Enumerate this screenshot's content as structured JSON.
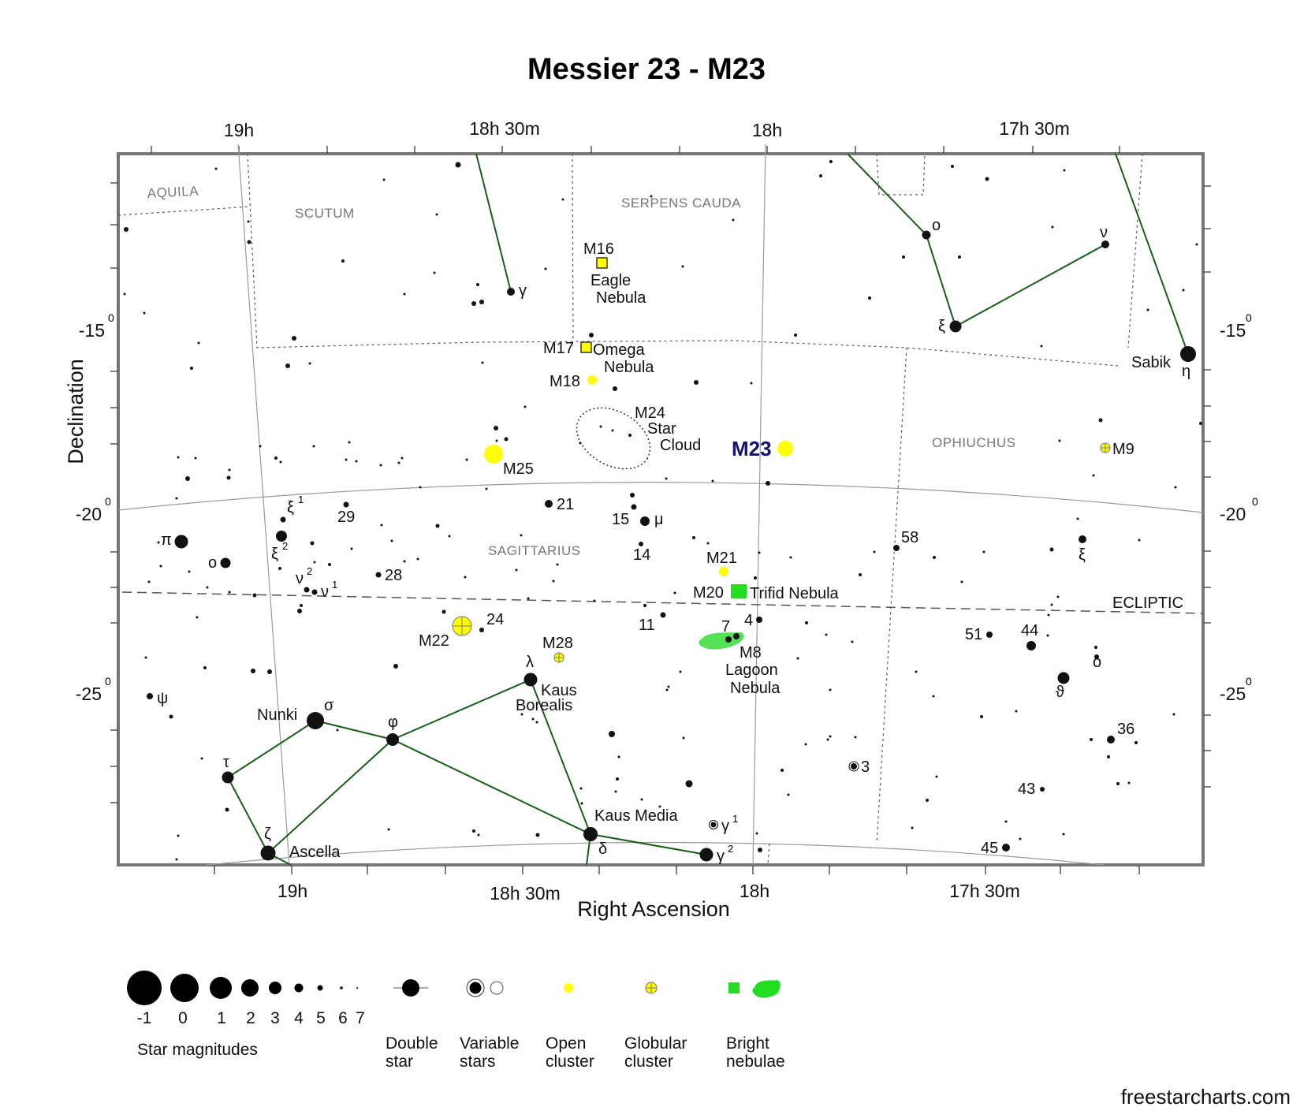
{
  "title": "Messier 23 - M23",
  "axis": {
    "xlabel": "Right Ascension",
    "ylabel": "Declination",
    "ra_ticks_top": [
      "19h",
      "18h 30m",
      "18h",
      "17h 30m"
    ],
    "ra_ticks_bottom": [
      "19h",
      "18h 30m",
      "18h",
      "17h 30m"
    ],
    "dec_ticks_left": [
      "-15",
      "-20",
      "-25"
    ],
    "dec_ticks_right": [
      "-15",
      "-20",
      "-25"
    ],
    "dec_degree_mark": "0"
  },
  "constellations": [
    "AQUILA",
    "SCUTUM",
    "SERPENS CAUDA",
    "OPHIUCHUS",
    "SAGITTARIUS"
  ],
  "ecliptic_label": "ECLIPTIC",
  "target": {
    "label": "M23",
    "type": "open cluster",
    "color": "#ffff00"
  },
  "deep_sky_labels": {
    "m16": "M16",
    "m16_name1": "Eagle",
    "m16_name2": "Nebula",
    "m17": "M17",
    "m17_name1": "Omega",
    "m17_name2": "Nebula",
    "m18": "M18",
    "m24": "M24",
    "m24_name1": "Star",
    "m24_name2": "Cloud",
    "m25": "M25",
    "m9": "M9",
    "m21": "M21",
    "m20": "M20",
    "m20_name": "Trifid Nebula",
    "m22": "M22",
    "m28": "M28",
    "m8": "M8",
    "m8_name1": "Lagoon",
    "m8_name2": "Nebula"
  },
  "star_labels": {
    "gamma_sct": "γ",
    "omicron_ser": "ο",
    "nu_ser": "ν",
    "xi_ser": "ξ",
    "sabik": "Sabik",
    "eta": "η",
    "xi1": "ξ",
    "xi1_sup": "1",
    "n29": "29",
    "n21": "21",
    "n15": "15",
    "mu": "μ",
    "pi": "π",
    "xi2": "ξ",
    "xi2_sup": "2",
    "o_sgr": "o",
    "n14": "14",
    "n58": "58",
    "xi_oph": "ξ",
    "nu2": "ν",
    "nu2_sup": "2",
    "nu1": "ν",
    "nu1_sup": "1",
    "n28": "28",
    "n24": "24",
    "n11": "11",
    "n7": "7",
    "n4": "4",
    "n51": "51",
    "n44": "44",
    "omicron_oph": "ο",
    "lambda": "λ",
    "kaus1": "Kaus",
    "kaus2": "Borealis",
    "psi": "ψ",
    "theta": "ϑ",
    "nunki": "Nunki",
    "sigma": "σ",
    "phi": "φ",
    "n36": "36",
    "tau": "τ",
    "n3": "3",
    "n43": "43",
    "zeta": "ζ",
    "kaus_media": "Kaus Media",
    "gamma1": "γ",
    "gamma1_sup": "1",
    "ascella": "Ascella",
    "delta": "δ",
    "gamma2": "γ",
    "gamma2_sup": "2",
    "n45": "45"
  },
  "legend": {
    "magnitudes": [
      "-1",
      "0",
      "1",
      "2",
      "3",
      "4",
      "5",
      "6",
      "7"
    ],
    "magnitudes_label": "Star magnitudes",
    "double_star": [
      "Double",
      "star"
    ],
    "variable_stars": [
      "Variable",
      "stars"
    ],
    "open_cluster": [
      "Open",
      "cluster"
    ],
    "globular_cluster": [
      "Globular",
      "cluster"
    ],
    "bright_nebulae": [
      "Bright",
      "nebulae"
    ]
  },
  "colors": {
    "constellation_lines": "#1a5e1a",
    "open_cluster": "#ffff00",
    "nebula": "#33dd33",
    "target_label": "#14146e"
  },
  "credit": "freestarcharts.com"
}
